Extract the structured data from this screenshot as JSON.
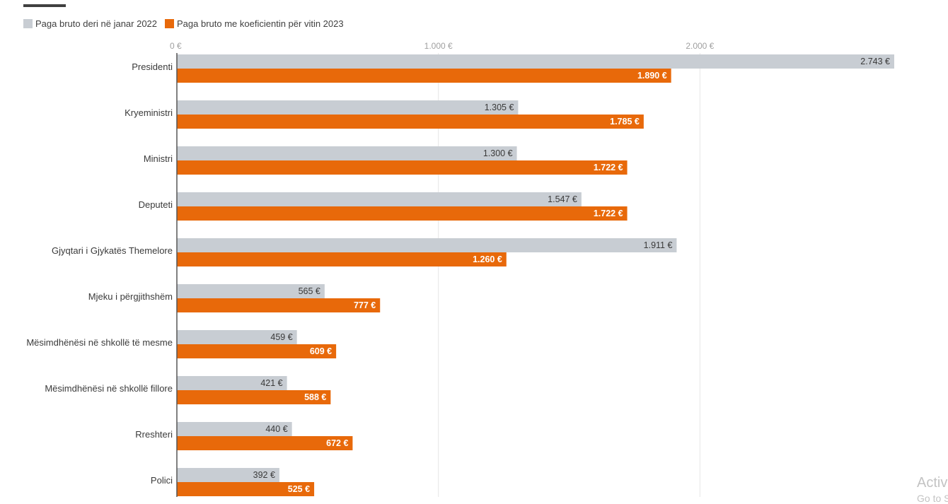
{
  "chart_data": {
    "type": "bar",
    "orientation": "horizontal",
    "title": "",
    "xlabel": "",
    "ylabel": "",
    "xlim": [
      0,
      2743
    ],
    "x_ticks": [
      {
        "value": 0,
        "label": "0 €"
      },
      {
        "value": 1000,
        "label": "1.000 €"
      },
      {
        "value": 2000,
        "label": "2.000 €"
      }
    ],
    "grid": true,
    "legend_position": "top-left",
    "categories": [
      "Presidenti",
      "Kryeministri",
      "Ministri",
      "Deputeti",
      "Gjyqtari i Gjykatës Themelore",
      "Mjeku i përgjithshëm",
      "Mësimdhënësi në shkollë të mesme",
      "Mësimdhënësi në shkollë fillore",
      "Rreshteri",
      "Polici"
    ],
    "series": [
      {
        "name": "Paga bruto deri në janar 2022",
        "color": "#c8cdd3",
        "label_color": "#3a3a3a",
        "values": [
          2743,
          1305,
          1300,
          1547,
          1911,
          565,
          459,
          421,
          440,
          392
        ],
        "labels": [
          "2.743 €",
          "1.305 €",
          "1.300 €",
          "1.547 €",
          "1.911 €",
          "565 €",
          "459 €",
          "421 €",
          "440 €",
          "392 €"
        ]
      },
      {
        "name": "Paga bruto me koeficientin për vitin 2023",
        "color": "#e8690a",
        "label_color": "#ffffff",
        "values": [
          1890,
          1785,
          1722,
          1722,
          1260,
          777,
          609,
          588,
          672,
          525
        ],
        "labels": [
          "1.890 €",
          "1.785 €",
          "1.722 €",
          "1.722 €",
          "1.260 €",
          "777 €",
          "609 €",
          "588 €",
          "672 €",
          "525 €"
        ]
      }
    ]
  },
  "watermark": {
    "line1": "Activ",
    "line2": "Go to S"
  }
}
